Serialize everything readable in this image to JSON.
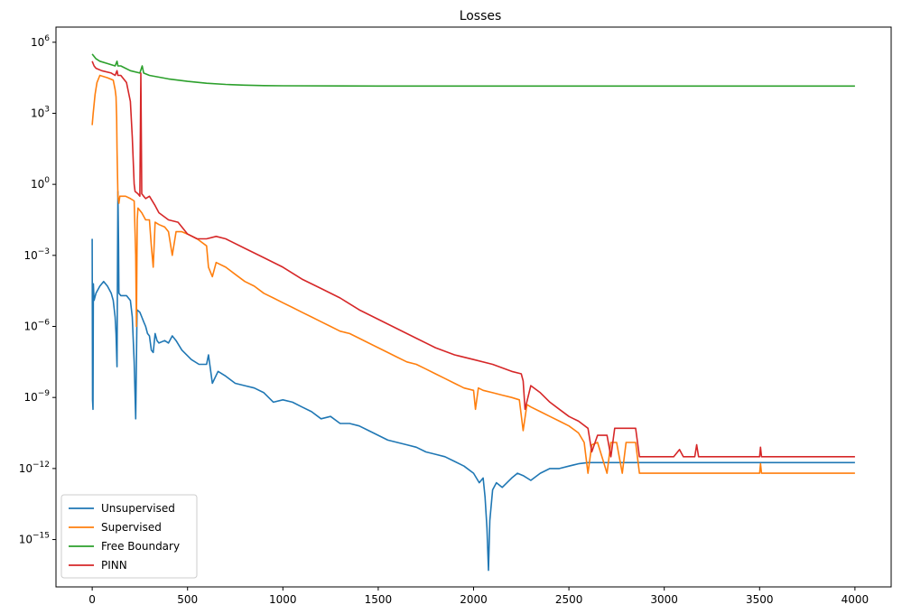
{
  "chart_data": {
    "type": "line",
    "title": "Losses",
    "xlabel": "",
    "ylabel": "",
    "yscale": "log",
    "xlim": [
      -190,
      4190
    ],
    "ylim": [
      -17.0,
      6.64
    ],
    "xticks": [
      {
        "value": 0,
        "label": "0"
      },
      {
        "value": 500,
        "label": "500"
      },
      {
        "value": 1000,
        "label": "1000"
      },
      {
        "value": 1500,
        "label": "1500"
      },
      {
        "value": 2000,
        "label": "2000"
      },
      {
        "value": 2500,
        "label": "2500"
      },
      {
        "value": 3000,
        "label": "3000"
      },
      {
        "value": 3500,
        "label": "3500"
      },
      {
        "value": 4000,
        "label": "4000"
      }
    ],
    "yticks": [
      {
        "exp": 6,
        "base": "10",
        "sup": "6"
      },
      {
        "exp": 3,
        "base": "10",
        "sup": "3"
      },
      {
        "exp": 0,
        "base": "10",
        "sup": "0"
      },
      {
        "exp": -3,
        "base": "10",
        "sup": "−3"
      },
      {
        "exp": -6,
        "base": "10",
        "sup": "−6"
      },
      {
        "exp": -9,
        "base": "10",
        "sup": "−9"
      },
      {
        "exp": -12,
        "base": "10",
        "sup": "−12"
      },
      {
        "exp": -15,
        "base": "10",
        "sup": "−15"
      }
    ],
    "grid": false,
    "legend_position": "lower-left",
    "series": [
      {
        "name": "Unsupervised",
        "color": "#1f77b4",
        "points": [
          [
            0,
            -2.3
          ],
          [
            2,
            -9.1
          ],
          [
            4,
            -9.5
          ],
          [
            6,
            -4.2
          ],
          [
            10,
            -4.9
          ],
          [
            20,
            -4.6
          ],
          [
            40,
            -4.3
          ],
          [
            60,
            -4.1
          ],
          [
            80,
            -4.3
          ],
          [
            100,
            -4.6
          ],
          [
            110,
            -4.9
          ],
          [
            120,
            -5.6
          ],
          [
            125,
            -6.3
          ],
          [
            130,
            -7.7
          ],
          [
            133,
            -3.0
          ],
          [
            135,
            -0.3
          ],
          [
            138,
            -2.5
          ],
          [
            140,
            -4.6
          ],
          [
            150,
            -4.7
          ],
          [
            180,
            -4.7
          ],
          [
            200,
            -4.9
          ],
          [
            210,
            -5.6
          ],
          [
            220,
            -7.5
          ],
          [
            228,
            -9.9
          ],
          [
            235,
            -5.3
          ],
          [
            250,
            -5.4
          ],
          [
            260,
            -5.6
          ],
          [
            270,
            -5.8
          ],
          [
            280,
            -6.0
          ],
          [
            290,
            -6.3
          ],
          [
            300,
            -6.4
          ],
          [
            310,
            -7.0
          ],
          [
            320,
            -7.1
          ],
          [
            330,
            -6.3
          ],
          [
            340,
            -6.6
          ],
          [
            350,
            -6.7
          ],
          [
            380,
            -6.6
          ],
          [
            400,
            -6.7
          ],
          [
            420,
            -6.4
          ],
          [
            440,
            -6.6
          ],
          [
            470,
            -7.0
          ],
          [
            520,
            -7.4
          ],
          [
            560,
            -7.6
          ],
          [
            600,
            -7.6
          ],
          [
            610,
            -7.2
          ],
          [
            630,
            -8.4
          ],
          [
            660,
            -7.9
          ],
          [
            700,
            -8.1
          ],
          [
            750,
            -8.4
          ],
          [
            800,
            -8.5
          ],
          [
            850,
            -8.6
          ],
          [
            900,
            -8.8
          ],
          [
            950,
            -9.2
          ],
          [
            1000,
            -9.1
          ],
          [
            1050,
            -9.2
          ],
          [
            1100,
            -9.4
          ],
          [
            1150,
            -9.6
          ],
          [
            1200,
            -9.9
          ],
          [
            1250,
            -9.8
          ],
          [
            1300,
            -10.1
          ],
          [
            1350,
            -10.1
          ],
          [
            1400,
            -10.2
          ],
          [
            1450,
            -10.4
          ],
          [
            1500,
            -10.6
          ],
          [
            1550,
            -10.8
          ],
          [
            1600,
            -10.9
          ],
          [
            1650,
            -11.0
          ],
          [
            1700,
            -11.1
          ],
          [
            1750,
            -11.3
          ],
          [
            1800,
            -11.4
          ],
          [
            1850,
            -11.5
          ],
          [
            1900,
            -11.7
          ],
          [
            1950,
            -11.9
          ],
          [
            2000,
            -12.2
          ],
          [
            2030,
            -12.6
          ],
          [
            2050,
            -12.4
          ],
          [
            2060,
            -13.2
          ],
          [
            2070,
            -14.5
          ],
          [
            2078,
            -16.3
          ],
          [
            2085,
            -14.2
          ],
          [
            2100,
            -12.9
          ],
          [
            2120,
            -12.6
          ],
          [
            2150,
            -12.8
          ],
          [
            2200,
            -12.4
          ],
          [
            2230,
            -12.2
          ],
          [
            2260,
            -12.3
          ],
          [
            2300,
            -12.5
          ],
          [
            2350,
            -12.2
          ],
          [
            2400,
            -12.0
          ],
          [
            2450,
            -12.0
          ],
          [
            2500,
            -11.9
          ],
          [
            2550,
            -11.8
          ],
          [
            2600,
            -11.75
          ],
          [
            3000,
            -11.75
          ],
          [
            4000,
            -11.75
          ]
        ]
      },
      {
        "name": "Supervised",
        "color": "#ff7f0e",
        "points": [
          [
            0,
            2.5
          ],
          [
            5,
            3.0
          ],
          [
            15,
            3.8
          ],
          [
            25,
            4.3
          ],
          [
            40,
            4.6
          ],
          [
            80,
            4.5
          ],
          [
            110,
            4.4
          ],
          [
            120,
            4.0
          ],
          [
            125,
            3.7
          ],
          [
            128,
            2.8
          ],
          [
            130,
            1.5
          ],
          [
            133,
            0.3
          ],
          [
            135,
            -0.5
          ],
          [
            140,
            -0.8
          ],
          [
            145,
            -0.5
          ],
          [
            150,
            -0.5
          ],
          [
            175,
            -0.5
          ],
          [
            200,
            -0.6
          ],
          [
            220,
            -0.7
          ],
          [
            228,
            -3.0
          ],
          [
            232,
            -6.0
          ],
          [
            236,
            -1.5
          ],
          [
            240,
            -1.0
          ],
          [
            250,
            -1.1
          ],
          [
            260,
            -1.2
          ],
          [
            280,
            -1.5
          ],
          [
            300,
            -1.5
          ],
          [
            310,
            -2.6
          ],
          [
            320,
            -3.5
          ],
          [
            330,
            -1.6
          ],
          [
            350,
            -1.7
          ],
          [
            380,
            -1.8
          ],
          [
            400,
            -2.0
          ],
          [
            420,
            -3.0
          ],
          [
            440,
            -2.0
          ],
          [
            470,
            -2.0
          ],
          [
            500,
            -2.1
          ],
          [
            550,
            -2.3
          ],
          [
            600,
            -2.6
          ],
          [
            610,
            -3.5
          ],
          [
            630,
            -3.9
          ],
          [
            650,
            -3.3
          ],
          [
            700,
            -3.5
          ],
          [
            750,
            -3.8
          ],
          [
            800,
            -4.1
          ],
          [
            850,
            -4.3
          ],
          [
            900,
            -4.6
          ],
          [
            950,
            -4.8
          ],
          [
            1000,
            -5.0
          ],
          [
            1050,
            -5.2
          ],
          [
            1100,
            -5.4
          ],
          [
            1150,
            -5.6
          ],
          [
            1200,
            -5.8
          ],
          [
            1250,
            -6.0
          ],
          [
            1300,
            -6.2
          ],
          [
            1350,
            -6.3
          ],
          [
            1400,
            -6.5
          ],
          [
            1450,
            -6.7
          ],
          [
            1500,
            -6.9
          ],
          [
            1550,
            -7.1
          ],
          [
            1600,
            -7.3
          ],
          [
            1650,
            -7.5
          ],
          [
            1700,
            -7.6
          ],
          [
            1750,
            -7.8
          ],
          [
            1800,
            -8.0
          ],
          [
            1850,
            -8.2
          ],
          [
            1900,
            -8.4
          ],
          [
            1950,
            -8.6
          ],
          [
            2000,
            -8.7
          ],
          [
            2010,
            -9.5
          ],
          [
            2025,
            -8.6
          ],
          [
            2050,
            -8.7
          ],
          [
            2100,
            -8.8
          ],
          [
            2150,
            -8.9
          ],
          [
            2200,
            -9.0
          ],
          [
            2240,
            -9.1
          ],
          [
            2260,
            -10.4
          ],
          [
            2280,
            -9.3
          ],
          [
            2300,
            -9.4
          ],
          [
            2350,
            -9.6
          ],
          [
            2400,
            -9.8
          ],
          [
            2450,
            -10.0
          ],
          [
            2500,
            -10.2
          ],
          [
            2550,
            -10.5
          ],
          [
            2580,
            -10.9
          ],
          [
            2600,
            -12.2
          ],
          [
            2620,
            -11.0
          ],
          [
            2650,
            -10.9
          ],
          [
            2700,
            -12.2
          ],
          [
            2720,
            -10.9
          ],
          [
            2750,
            -10.9
          ],
          [
            2780,
            -12.2
          ],
          [
            2800,
            -10.9
          ],
          [
            2850,
            -10.9
          ],
          [
            2870,
            -12.2
          ],
          [
            2900,
            -12.2
          ],
          [
            3500,
            -12.2
          ],
          [
            3505,
            -11.8
          ],
          [
            3510,
            -12.2
          ],
          [
            4000,
            -12.2
          ]
        ]
      },
      {
        "name": "Free Boundary",
        "color": "#2ca02c",
        "points": [
          [
            0,
            5.5
          ],
          [
            20,
            5.3
          ],
          [
            40,
            5.2
          ],
          [
            80,
            5.1
          ],
          [
            120,
            5.0
          ],
          [
            130,
            5.2
          ],
          [
            135,
            5.0
          ],
          [
            150,
            5.0
          ],
          [
            200,
            4.8
          ],
          [
            250,
            4.7
          ],
          [
            262,
            5.0
          ],
          [
            270,
            4.7
          ],
          [
            300,
            4.6
          ],
          [
            400,
            4.45
          ],
          [
            500,
            4.35
          ],
          [
            600,
            4.27
          ],
          [
            700,
            4.22
          ],
          [
            800,
            4.19
          ],
          [
            900,
            4.17
          ],
          [
            1000,
            4.16
          ],
          [
            1500,
            4.15
          ],
          [
            2000,
            4.15
          ],
          [
            3000,
            4.15
          ],
          [
            4000,
            4.15
          ]
        ]
      },
      {
        "name": "PINN",
        "color": "#d62728",
        "points": [
          [
            0,
            5.2
          ],
          [
            10,
            5.0
          ],
          [
            20,
            4.9
          ],
          [
            50,
            4.8
          ],
          [
            100,
            4.7
          ],
          [
            120,
            4.6
          ],
          [
            130,
            4.8
          ],
          [
            135,
            4.6
          ],
          [
            150,
            4.6
          ],
          [
            180,
            4.3
          ],
          [
            200,
            3.5
          ],
          [
            210,
            2.0
          ],
          [
            220,
            0.0
          ],
          [
            225,
            -0.3
          ],
          [
            240,
            -0.4
          ],
          [
            250,
            -0.5
          ],
          [
            255,
            4.7
          ],
          [
            260,
            -0.4
          ],
          [
            270,
            -0.5
          ],
          [
            280,
            -0.6
          ],
          [
            300,
            -0.5
          ],
          [
            330,
            -0.9
          ],
          [
            350,
            -1.2
          ],
          [
            400,
            -1.5
          ],
          [
            450,
            -1.6
          ],
          [
            500,
            -2.1
          ],
          [
            550,
            -2.3
          ],
          [
            600,
            -2.3
          ],
          [
            650,
            -2.2
          ],
          [
            700,
            -2.3
          ],
          [
            800,
            -2.7
          ],
          [
            900,
            -3.1
          ],
          [
            1000,
            -3.5
          ],
          [
            1100,
            -4.0
          ],
          [
            1200,
            -4.4
          ],
          [
            1300,
            -4.8
          ],
          [
            1400,
            -5.3
          ],
          [
            1500,
            -5.7
          ],
          [
            1600,
            -6.1
          ],
          [
            1700,
            -6.5
          ],
          [
            1800,
            -6.9
          ],
          [
            1900,
            -7.2
          ],
          [
            2000,
            -7.4
          ],
          [
            2100,
            -7.6
          ],
          [
            2200,
            -7.9
          ],
          [
            2250,
            -8.0
          ],
          [
            2260,
            -8.3
          ],
          [
            2270,
            -9.5
          ],
          [
            2300,
            -8.5
          ],
          [
            2350,
            -8.8
          ],
          [
            2400,
            -9.2
          ],
          [
            2450,
            -9.5
          ],
          [
            2500,
            -9.8
          ],
          [
            2550,
            -10.0
          ],
          [
            2600,
            -10.3
          ],
          [
            2620,
            -11.3
          ],
          [
            2650,
            -10.6
          ],
          [
            2700,
            -10.6
          ],
          [
            2720,
            -11.5
          ],
          [
            2740,
            -10.3
          ],
          [
            2800,
            -10.3
          ],
          [
            2850,
            -10.3
          ],
          [
            2870,
            -11.5
          ],
          [
            2900,
            -11.5
          ],
          [
            2950,
            -11.5
          ],
          [
            3000,
            -11.5
          ],
          [
            3050,
            -11.5
          ],
          [
            3080,
            -11.2
          ],
          [
            3100,
            -11.5
          ],
          [
            3160,
            -11.5
          ],
          [
            3170,
            -11.0
          ],
          [
            3180,
            -11.5
          ],
          [
            3500,
            -11.5
          ],
          [
            3505,
            -11.1
          ],
          [
            3510,
            -11.5
          ],
          [
            4000,
            -11.5
          ]
        ]
      }
    ]
  }
}
